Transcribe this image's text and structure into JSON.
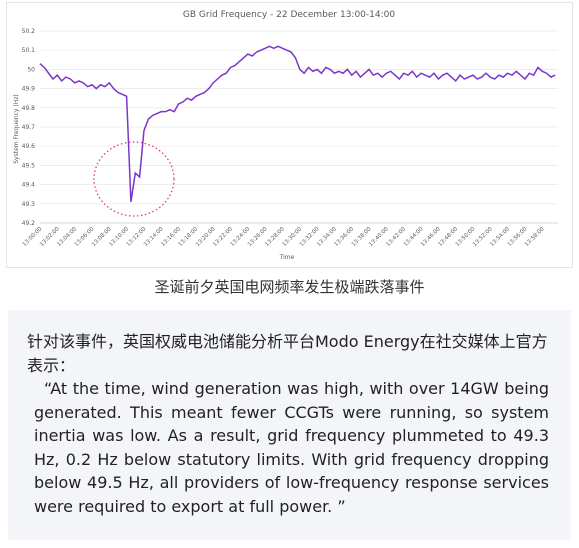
{
  "chart_data": {
    "type": "line",
    "title": "GB Grid Frequency - 22 December 13:00-14:00",
    "x_label": "Time",
    "y_label": "System Frequency (Hz)",
    "categories": [
      "13:00:00",
      null,
      null,
      null,
      "13:02:00",
      null,
      null,
      null,
      "13:04:00",
      null,
      null,
      null,
      "13:06:00",
      null,
      null,
      null,
      "13:08:00",
      null,
      null,
      null,
      "13:10:00",
      null,
      null,
      null,
      "13:12:00",
      null,
      null,
      null,
      "13:14:00",
      null,
      null,
      null,
      "13:16:00",
      null,
      null,
      null,
      "13:18:00",
      null,
      null,
      null,
      "13:20:00",
      null,
      null,
      null,
      "13:22:00",
      null,
      null,
      null,
      "13:24:00",
      null,
      null,
      null,
      "13:26:00",
      null,
      null,
      null,
      "13:28:00",
      null,
      null,
      null,
      "13:30:00",
      null,
      null,
      null,
      "13:32:00",
      null,
      null,
      null,
      "13:34:00",
      null,
      null,
      null,
      "13:36:00",
      null,
      null,
      null,
      "13:38:00",
      null,
      null,
      null,
      "13:40:00",
      null,
      null,
      null,
      "13:42:00",
      null,
      null,
      null,
      "13:44:00",
      null,
      null,
      null,
      "13:46:00",
      null,
      null,
      null,
      "13:48:00",
      null,
      null,
      null,
      "13:50:00",
      null,
      null,
      null,
      "13:52:00",
      null,
      null,
      null,
      "13:54:00",
      null,
      null,
      null,
      "13:56:00",
      null,
      null,
      null,
      "13:58:00",
      null,
      null,
      null
    ],
    "series": [
      {
        "color": "#7b36c9",
        "values": [
          50.03,
          50.01,
          49.98,
          49.95,
          49.97,
          49.94,
          49.96,
          49.95,
          49.93,
          49.94,
          49.93,
          49.91,
          49.92,
          49.9,
          49.92,
          49.91,
          49.93,
          49.9,
          49.88,
          49.87,
          49.86,
          49.31,
          49.46,
          49.44,
          49.68,
          49.74,
          49.76,
          49.77,
          49.78,
          49.78,
          49.79,
          49.78,
          49.82,
          49.83,
          49.85,
          49.84,
          49.86,
          49.87,
          49.88,
          49.9,
          49.93,
          49.95,
          49.97,
          49.98,
          50.01,
          50.02,
          50.04,
          50.06,
          50.08,
          50.07,
          50.09,
          50.1,
          50.11,
          50.12,
          50.11,
          50.12,
          50.11,
          50.1,
          50.09,
          50.06,
          50.0,
          49.98,
          50.01,
          49.99,
          50.0,
          49.98,
          50.01,
          50.0,
          49.98,
          49.99,
          49.98,
          50.0,
          49.97,
          49.99,
          49.96,
          49.98,
          50.0,
          49.97,
          49.98,
          49.96,
          49.98,
          49.99,
          49.97,
          49.95,
          49.98,
          49.97,
          49.99,
          49.96,
          49.98,
          49.97,
          49.96,
          49.98,
          49.95,
          49.97,
          49.98,
          49.96,
          49.94,
          49.97,
          49.95,
          49.96,
          49.97,
          49.95,
          49.96,
          49.98,
          49.96,
          49.95,
          49.97,
          49.96,
          49.98,
          49.97,
          49.99,
          49.97,
          49.95,
          49.98,
          49.97,
          50.01,
          49.99,
          49.98,
          49.96,
          49.97
        ]
      }
    ],
    "ylim": [
      49.2,
      50.2
    ],
    "yticks": [
      49.2,
      49.3,
      49.4,
      49.5,
      49.6,
      49.7,
      49.8,
      49.9,
      50,
      50.1,
      50.2
    ],
    "grid": true
  },
  "caption": "圣诞前夕英国电网频率发生极端跌落事件",
  "intro": "针对该事件，英国权威电池储能分析平台Modo Energy在社交媒体上官方表示：",
  "quote": "“At the time, wind generation was high, with over 14GW being generated. This meant fewer CCGTs were running, so system inertia was low. As a result, grid frequency plummeted to 49.3 Hz, 0.2 Hz below statutory limits. With grid frequency dropping below 49.5 Hz, all providers of low-frequency response services were required to export at full power. ”"
}
